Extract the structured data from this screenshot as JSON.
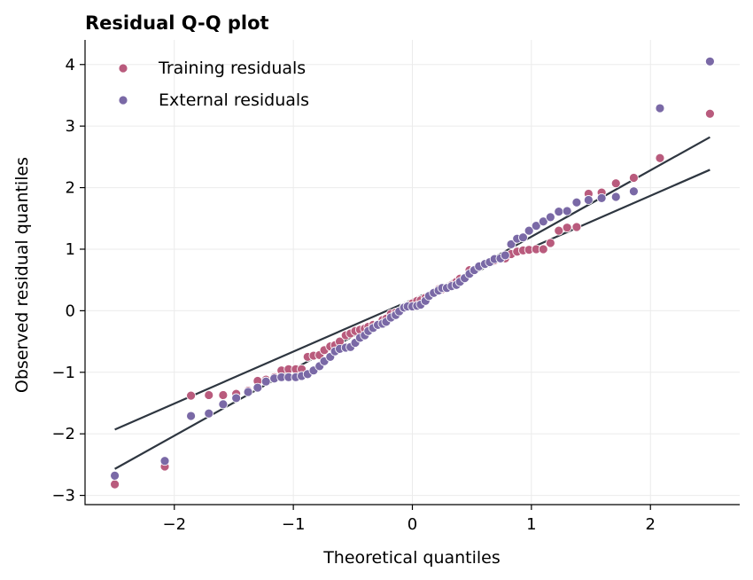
{
  "chart_data": {
    "type": "scatter",
    "title": "Residual Q-Q plot",
    "xlabel": "Theoretical quantiles",
    "ylabel": "Observed residual quantiles",
    "xlim": [
      -2.75,
      2.75
    ],
    "ylim": [
      -3.15,
      4.4
    ],
    "xticks": [
      -2,
      -1,
      0,
      1,
      2
    ],
    "yticks": [
      -3,
      -2,
      -1,
      0,
      1,
      2,
      3,
      4
    ],
    "xtick_labels": [
      "−2",
      "−1",
      "0",
      "1",
      "2"
    ],
    "ytick_labels": [
      "−3",
      "−2",
      "−1",
      "0",
      "1",
      "2",
      "3",
      "4"
    ],
    "grid": true,
    "legend_position": "top-left",
    "reference_lines": [
      {
        "x": [
          -2.5,
          2.5
        ],
        "y": [
          -1.93,
          2.29
        ],
        "color": "#2e3640"
      },
      {
        "x": [
          -2.5,
          2.5
        ],
        "y": [
          -2.57,
          2.82
        ],
        "color": "#2e3640"
      }
    ],
    "series": [
      {
        "name": "Training residuals",
        "color": "#b95b7d",
        "x": [
          -2.5,
          -2.08,
          -1.86,
          -1.71,
          -1.59,
          -1.48,
          -1.38,
          -1.3,
          -1.23,
          -1.16,
          -1.1,
          -1.04,
          -0.98,
          -0.93,
          -0.88,
          -0.83,
          -0.78,
          -0.74,
          -0.69,
          -0.65,
          -0.61,
          -0.56,
          -0.52,
          -0.48,
          -0.44,
          -0.4,
          -0.37,
          -0.33,
          -0.29,
          -0.25,
          -0.22,
          -0.18,
          -0.14,
          -0.11,
          -0.07,
          -0.04,
          0.0,
          0.04,
          0.07,
          0.11,
          0.14,
          0.18,
          0.22,
          0.25,
          0.29,
          0.33,
          0.37,
          0.4,
          0.44,
          0.48,
          0.52,
          0.56,
          0.61,
          0.65,
          0.69,
          0.74,
          0.78,
          0.83,
          0.88,
          0.93,
          0.98,
          1.04,
          1.1,
          1.16,
          1.23,
          1.3,
          1.38,
          1.48,
          1.59,
          1.71,
          1.86,
          2.08,
          2.5
        ],
        "y": [
          -2.82,
          -2.53,
          -1.38,
          -1.37,
          -1.37,
          -1.35,
          -1.3,
          -1.14,
          -1.12,
          -1.08,
          -0.97,
          -0.95,
          -0.95,
          -0.95,
          -0.75,
          -0.73,
          -0.72,
          -0.64,
          -0.58,
          -0.56,
          -0.5,
          -0.4,
          -0.37,
          -0.33,
          -0.31,
          -0.29,
          -0.26,
          -0.23,
          -0.22,
          -0.15,
          -0.13,
          -0.05,
          -0.03,
          -0.02,
          0.06,
          0.08,
          0.12,
          0.16,
          0.17,
          0.21,
          0.23,
          0.28,
          0.35,
          0.35,
          0.38,
          0.42,
          0.47,
          0.52,
          0.54,
          0.66,
          0.67,
          0.73,
          0.75,
          0.79,
          0.82,
          0.84,
          0.85,
          0.92,
          0.96,
          0.98,
          0.99,
          1.0,
          1.0,
          1.1,
          1.3,
          1.35,
          1.36,
          1.9,
          1.92,
          2.07,
          2.16,
          2.48,
          3.2
        ]
      },
      {
        "name": "External residuals",
        "color": "#7a69a6",
        "x": [
          -2.5,
          -2.08,
          -1.86,
          -1.71,
          -1.59,
          -1.48,
          -1.38,
          -1.3,
          -1.23,
          -1.16,
          -1.1,
          -1.04,
          -0.98,
          -0.93,
          -0.88,
          -0.83,
          -0.78,
          -0.74,
          -0.69,
          -0.65,
          -0.61,
          -0.56,
          -0.52,
          -0.48,
          -0.44,
          -0.4,
          -0.37,
          -0.33,
          -0.29,
          -0.25,
          -0.22,
          -0.18,
          -0.14,
          -0.11,
          -0.07,
          -0.04,
          0.0,
          0.04,
          0.07,
          0.11,
          0.14,
          0.18,
          0.22,
          0.25,
          0.29,
          0.33,
          0.37,
          0.4,
          0.44,
          0.48,
          0.52,
          0.56,
          0.61,
          0.65,
          0.69,
          0.74,
          0.78,
          0.83,
          0.88,
          0.93,
          0.98,
          1.04,
          1.1,
          1.16,
          1.23,
          1.3,
          1.38,
          1.48,
          1.59,
          1.71,
          1.86,
          2.08,
          2.5
        ],
        "y": [
          -2.68,
          -2.44,
          -1.71,
          -1.67,
          -1.52,
          -1.42,
          -1.32,
          -1.25,
          -1.15,
          -1.1,
          -1.08,
          -1.08,
          -1.08,
          -1.06,
          -1.03,
          -0.97,
          -0.9,
          -0.82,
          -0.75,
          -0.66,
          -0.62,
          -0.6,
          -0.59,
          -0.52,
          -0.44,
          -0.4,
          -0.33,
          -0.28,
          -0.23,
          -0.21,
          -0.18,
          -0.11,
          -0.07,
          -0.01,
          0.05,
          0.07,
          0.07,
          0.08,
          0.1,
          0.16,
          0.24,
          0.29,
          0.33,
          0.37,
          0.37,
          0.4,
          0.42,
          0.47,
          0.53,
          0.6,
          0.66,
          0.72,
          0.76,
          0.79,
          0.84,
          0.85,
          0.9,
          1.08,
          1.17,
          1.19,
          1.3,
          1.38,
          1.45,
          1.52,
          1.61,
          1.62,
          1.76,
          1.8,
          1.83,
          1.85,
          1.94,
          3.29,
          4.05
        ]
      }
    ]
  }
}
